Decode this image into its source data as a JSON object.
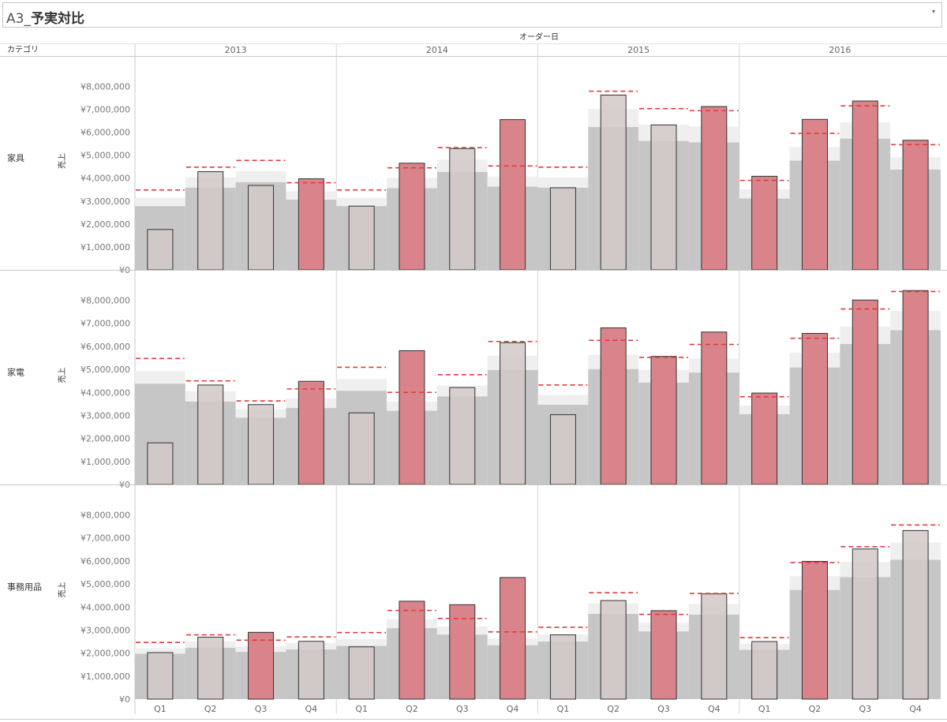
{
  "dashboard": {
    "title_prefix": "A3_",
    "title_main": "予実対比",
    "dropdown_icon": "▾"
  },
  "colors": {
    "actual_bar_over": "#d9848a",
    "actual_bar_under": "#d2c8c8",
    "bar_stroke": "#333333",
    "band_light": "#efefef",
    "band_dark": "#c6c6c6",
    "target_line": "#e03c3c",
    "grid_line": "#d6d6d6"
  },
  "chart_data": {
    "type": "bar",
    "title": "",
    "column_header": "オーダー日",
    "row_header": "カテゴリ",
    "ylabel": "売上",
    "ylim": [
      0,
      8800000
    ],
    "y_ticks": [
      0,
      1000000,
      2000000,
      3000000,
      4000000,
      5000000,
      6000000,
      7000000,
      8000000
    ],
    "y_tick_labels": [
      "¥0",
      "¥1,000,000",
      "¥2,000,000",
      "¥3,000,000",
      "¥4,000,000",
      "¥5,000,000",
      "¥6,000,000",
      "¥7,000,000",
      "¥8,000,000"
    ],
    "years": [
      "2013",
      "2014",
      "2015",
      "2016"
    ],
    "quarters": [
      "Q1",
      "Q2",
      "Q3",
      "Q4"
    ],
    "categories": [
      "家具",
      "家電",
      "事務用品"
    ],
    "panels": [
      {
        "category": "家具",
        "actual": [
          1760000,
          4280000,
          3680000,
          3970000,
          2780000,
          4650000,
          5290000,
          6550000,
          3580000,
          7620000,
          6320000,
          7120000,
          4080000,
          6560000,
          7360000,
          5650000
        ],
        "target": [
          3480000,
          4480000,
          4770000,
          3800000,
          3480000,
          4450000,
          5330000,
          4530000,
          4480000,
          7790000,
          7030000,
          6940000,
          3900000,
          5950000,
          7150000,
          5460000
        ],
        "band_low": [
          2780000,
          3580000,
          3820000,
          3060000,
          2780000,
          3560000,
          4270000,
          3630000,
          3580000,
          6230000,
          5620000,
          5560000,
          3110000,
          4760000,
          5720000,
          4370000
        ],
        "band_high": [
          3130000,
          4030000,
          4300000,
          3420000,
          3130000,
          4010000,
          4800000,
          4080000,
          4030000,
          7010000,
          6330000,
          6250000,
          3510000,
          5350000,
          6430000,
          4910000
        ]
      },
      {
        "category": "家電",
        "actual": [
          1810000,
          4320000,
          3470000,
          4480000,
          3110000,
          5810000,
          4210000,
          6160000,
          3030000,
          6800000,
          5560000,
          6620000,
          3970000,
          6560000,
          8010000,
          8420000
        ],
        "target": [
          5470000,
          4500000,
          3630000,
          4150000,
          5090000,
          4000000,
          4770000,
          6210000,
          4320000,
          6260000,
          5520000,
          6080000,
          3810000,
          6350000,
          7620000,
          8380000
        ],
        "band_low": [
          4380000,
          3600000,
          2900000,
          3320000,
          4070000,
          3200000,
          3820000,
          4970000,
          3460000,
          5010000,
          4420000,
          4860000,
          3050000,
          5080000,
          6100000,
          6700000
        ],
        "band_high": [
          4920000,
          4050000,
          3270000,
          3740000,
          4580000,
          3600000,
          4290000,
          5590000,
          3890000,
          5630000,
          4970000,
          5470000,
          3430000,
          5720000,
          6860000,
          7540000
        ]
      },
      {
        "category": "事務用品",
        "actual": [
          2020000,
          2690000,
          2900000,
          2510000,
          2270000,
          4250000,
          4100000,
          5280000,
          2790000,
          4280000,
          3840000,
          4570000,
          2500000,
          5980000,
          6520000,
          7320000
        ],
        "target": [
          2460000,
          2790000,
          2560000,
          2700000,
          2890000,
          3850000,
          3500000,
          2920000,
          3120000,
          4620000,
          3680000,
          4590000,
          2670000,
          5930000,
          6620000,
          7560000
        ],
        "band_low": [
          1970000,
          2230000,
          2050000,
          2160000,
          2310000,
          3080000,
          2800000,
          2340000,
          2500000,
          3700000,
          2940000,
          3670000,
          2140000,
          4740000,
          5300000,
          6050000
        ],
        "band_high": [
          2210000,
          2510000,
          2300000,
          2430000,
          2600000,
          3470000,
          3150000,
          2630000,
          2810000,
          4160000,
          3310000,
          4130000,
          2400000,
          5340000,
          5960000,
          6800000
        ]
      }
    ]
  }
}
